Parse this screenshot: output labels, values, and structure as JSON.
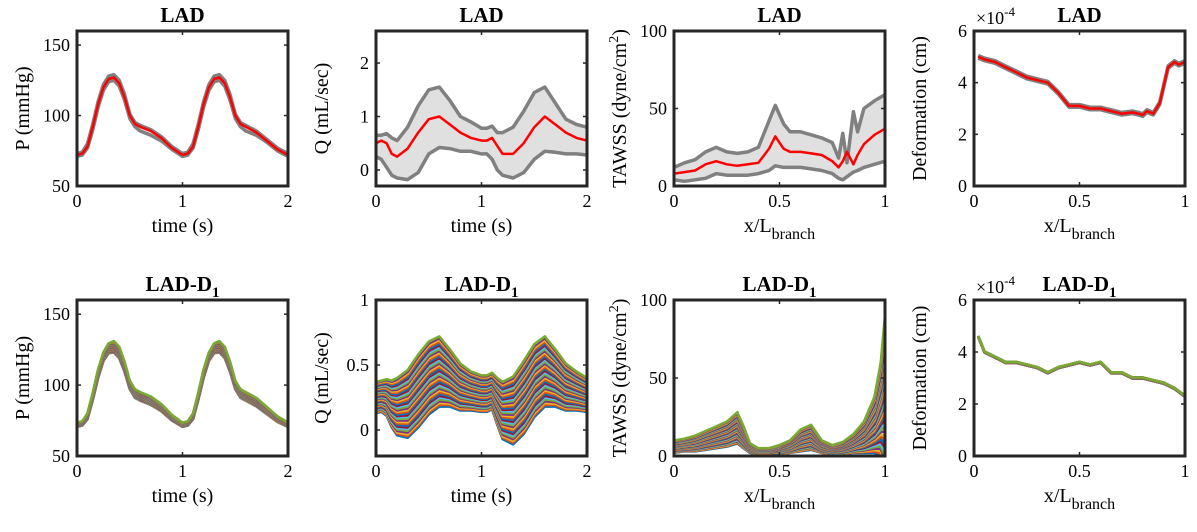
{
  "chart_data": [
    {
      "type": "line",
      "title": "LAD",
      "xlabel": "time (s)",
      "ylabel": "P (mmHg)",
      "xlim": [
        0,
        2
      ],
      "ylim": [
        50,
        160
      ],
      "xticks": [
        "0",
        "1",
        "2"
      ],
      "yticks": [
        "50",
        "100",
        "150"
      ],
      "colors": {
        "mean": "#ff0000",
        "bound": "#808080",
        "band": "#e0e0e0"
      },
      "series": [
        {
          "x": [
            0,
            0.05,
            0.1,
            0.15,
            0.2,
            0.25,
            0.3,
            0.35,
            0.4,
            0.45,
            0.5,
            0.55,
            0.6,
            0.7,
            0.8,
            0.9,
            1.0,
            1.05,
            1.1,
            1.15,
            1.2,
            1.25,
            1.3,
            1.35,
            1.4,
            1.45,
            1.5,
            1.55,
            1.6,
            1.7,
            1.8,
            1.9,
            2.0
          ],
          "mean": [
            72,
            73,
            78,
            92,
            108,
            120,
            126,
            127,
            123,
            113,
            100,
            94,
            92,
            89,
            84,
            77,
            72,
            73,
            78,
            92,
            108,
            120,
            126,
            127,
            123,
            113,
            100,
            94,
            92,
            88,
            82,
            76,
            72
          ],
          "upper": [
            73,
            74,
            80,
            94,
            110,
            122,
            128,
            129,
            125,
            115,
            101,
            95,
            93,
            90,
            85,
            78,
            73,
            74,
            80,
            94,
            110,
            122,
            128,
            129,
            125,
            115,
            101,
            95,
            93,
            89,
            83,
            77,
            73
          ],
          "lower": [
            71,
            72,
            77,
            90,
            106,
            118,
            124,
            125,
            121,
            111,
            98,
            92,
            89,
            86,
            82,
            76,
            71,
            72,
            77,
            90,
            106,
            118,
            124,
            125,
            121,
            111,
            98,
            92,
            89,
            86,
            81,
            75,
            71
          ]
        }
      ]
    },
    {
      "type": "line",
      "title": "LAD",
      "xlabel": "time (s)",
      "ylabel": "Q (mL/sec)",
      "xlim": [
        0,
        2
      ],
      "ylim": [
        -0.3,
        2.6
      ],
      "xticks": [
        "0",
        "1",
        "2"
      ],
      "yticks": [
        "0",
        "1",
        "2"
      ],
      "colors": {
        "mean": "#ff0000",
        "bound": "#808080",
        "band": "#e0e0e0"
      },
      "series": [
        {
          "x": [
            0,
            0.05,
            0.1,
            0.15,
            0.2,
            0.3,
            0.4,
            0.5,
            0.6,
            0.7,
            0.8,
            0.9,
            1.0,
            1.05,
            1.1,
            1.15,
            1.2,
            1.3,
            1.4,
            1.5,
            1.6,
            1.7,
            1.8,
            1.9,
            2.0
          ],
          "mean": [
            0.5,
            0.55,
            0.5,
            0.3,
            0.25,
            0.4,
            0.7,
            0.95,
            1.0,
            0.85,
            0.7,
            0.6,
            0.55,
            0.55,
            0.6,
            0.45,
            0.3,
            0.3,
            0.5,
            0.8,
            1.0,
            0.85,
            0.7,
            0.6,
            0.55
          ],
          "upper": [
            0.65,
            0.65,
            0.68,
            0.6,
            0.55,
            0.8,
            1.2,
            1.5,
            1.55,
            1.3,
            1.0,
            0.9,
            0.78,
            0.78,
            0.82,
            0.7,
            0.7,
            0.8,
            1.1,
            1.45,
            1.55,
            1.25,
            0.95,
            0.85,
            0.8
          ],
          "lower": [
            0.25,
            0.2,
            0.05,
            -0.1,
            -0.15,
            -0.18,
            -0.05,
            0.3,
            0.42,
            0.4,
            0.35,
            0.35,
            0.3,
            0.3,
            0.2,
            0.0,
            -0.1,
            -0.15,
            -0.05,
            0.2,
            0.35,
            0.33,
            0.3,
            0.3,
            0.28
          ]
        }
      ]
    },
    {
      "type": "line",
      "title": "LAD",
      "xlabel": "x/L",
      "xlabel_sub": "branch",
      "ylabel": "TAWSS (dyne/cm",
      "ylabel_sup": "2",
      "ylabel_end": ")",
      "xlim": [
        0,
        1
      ],
      "ylim": [
        0,
        100
      ],
      "xticks": [
        "0",
        "0.5",
        "1"
      ],
      "yticks": [
        "0",
        "50",
        "100"
      ],
      "colors": {
        "mean": "#ff0000",
        "bound": "#808080",
        "band": "#e0e0e0"
      },
      "series": [
        {
          "x": [
            0,
            0.05,
            0.1,
            0.15,
            0.2,
            0.25,
            0.3,
            0.35,
            0.4,
            0.45,
            0.48,
            0.52,
            0.55,
            0.6,
            0.65,
            0.7,
            0.75,
            0.78,
            0.8,
            0.82,
            0.85,
            0.87,
            0.9,
            0.95,
            1.0
          ],
          "mean": [
            8,
            9,
            10,
            14,
            16,
            14,
            13,
            14,
            15,
            24,
            32,
            24,
            22,
            22,
            21,
            20,
            16,
            12,
            16,
            22,
            14,
            20,
            27,
            33,
            37
          ],
          "upper": [
            12,
            15,
            17,
            22,
            25,
            22,
            21,
            22,
            25,
            42,
            52,
            40,
            35,
            35,
            33,
            31,
            28,
            18,
            34,
            15,
            48,
            35,
            50,
            55,
            59
          ],
          "lower": [
            4,
            3,
            4,
            5,
            8,
            7,
            7,
            7,
            8,
            10,
            13,
            12,
            12,
            12,
            11,
            10,
            8,
            5,
            4,
            6,
            9,
            10,
            12,
            14,
            16
          ]
        }
      ]
    },
    {
      "type": "line",
      "title": "LAD",
      "xlabel": "x/L",
      "xlabel_sub": "branch",
      "ylabel": "Deformation (cm)",
      "scale_note": "×10",
      "scale_exp": "-4",
      "xlim": [
        0,
        1
      ],
      "ylim": [
        0,
        6
      ],
      "xticks": [
        "0",
        "0.5",
        "1"
      ],
      "yticks": [
        "0",
        "2",
        "4",
        "6"
      ],
      "colors": {
        "mean": "#ff0000",
        "bound": "#808080",
        "band": "#e0e0e0"
      },
      "series": [
        {
          "x": [
            0.02,
            0.05,
            0.1,
            0.15,
            0.2,
            0.25,
            0.3,
            0.35,
            0.4,
            0.45,
            0.5,
            0.55,
            0.6,
            0.65,
            0.7,
            0.75,
            0.78,
            0.8,
            0.82,
            0.85,
            0.88,
            0.9,
            0.92,
            0.95,
            0.97,
            1.0
          ],
          "mean": [
            5.0,
            4.9,
            4.8,
            4.6,
            4.4,
            4.2,
            4.1,
            4.0,
            3.6,
            3.1,
            3.1,
            3.0,
            3.0,
            2.9,
            2.8,
            2.85,
            2.8,
            2.75,
            2.9,
            2.8,
            3.2,
            3.9,
            4.6,
            4.8,
            4.7,
            4.8
          ],
          "upper": [
            5.05,
            4.95,
            4.85,
            4.65,
            4.45,
            4.25,
            4.15,
            4.05,
            3.65,
            3.15,
            3.15,
            3.05,
            3.05,
            2.95,
            2.85,
            2.9,
            2.85,
            2.8,
            2.95,
            2.85,
            3.25,
            3.95,
            4.65,
            4.85,
            4.75,
            4.85
          ],
          "lower": [
            4.95,
            4.85,
            4.75,
            4.55,
            4.35,
            4.15,
            4.05,
            3.95,
            3.55,
            3.05,
            3.05,
            2.95,
            2.95,
            2.85,
            2.75,
            2.8,
            2.75,
            2.7,
            2.85,
            2.75,
            3.15,
            3.85,
            4.55,
            4.75,
            4.65,
            4.75
          ]
        }
      ]
    },
    {
      "type": "line",
      "title": "LAD-D",
      "title_sub": "1",
      "xlabel": "time (s)",
      "ylabel": "P (mmHg)",
      "xlim": [
        0,
        2
      ],
      "ylim": [
        50,
        160
      ],
      "xticks": [
        "0",
        "1",
        "2"
      ],
      "yticks": [
        "50",
        "100",
        "150"
      ],
      "series_colors": [
        "#0072bd",
        "#d95319",
        "#edb120",
        "#7e2f8e",
        "#77ac30",
        "#4dbeee",
        "#a2142f"
      ],
      "series": [
        {
          "x": [
            0,
            0.05,
            0.1,
            0.15,
            0.2,
            0.25,
            0.3,
            0.35,
            0.4,
            0.45,
            0.5,
            0.55,
            0.6,
            0.7,
            0.8,
            0.9,
            1.0,
            1.05,
            1.1,
            1.15,
            1.2,
            1.25,
            1.3,
            1.35,
            1.4,
            1.45,
            1.5,
            1.55,
            1.6,
            1.7,
            1.8,
            1.9,
            2.0
          ],
          "values": [
            72,
            73,
            78,
            92,
            108,
            120,
            126,
            127,
            123,
            113,
            100,
            94,
            92,
            89,
            84,
            77,
            72,
            73,
            78,
            92,
            108,
            120,
            126,
            127,
            123,
            113,
            100,
            94,
            92,
            88,
            82,
            76,
            72
          ],
          "spread": [
            1.5,
            1.5,
            2,
            2.5,
            3,
            3,
            3.5,
            4,
            4,
            3.5,
            3,
            3,
            3,
            3,
            2.5,
            2,
            1.5,
            1.5,
            2,
            2.5,
            3,
            3,
            3.5,
            4,
            4,
            3.5,
            3,
            3,
            3,
            3,
            2.5,
            2,
            1.5
          ]
        }
      ]
    },
    {
      "type": "line",
      "title": "LAD-D",
      "title_sub": "1",
      "xlabel": "time (s)",
      "ylabel": "Q (mL/sec)",
      "xlim": [
        0,
        2
      ],
      "ylim": [
        -0.2,
        1.0
      ],
      "xticks": [
        "0",
        "1",
        "2"
      ],
      "yticks": [
        "0",
        "0.5",
        "1"
      ],
      "series_colors": [
        "#0072bd",
        "#d95319",
        "#edb120",
        "#7e2f8e",
        "#77ac30",
        "#4dbeee",
        "#a2142f"
      ],
      "series": [
        {
          "x": [
            0,
            0.05,
            0.1,
            0.15,
            0.2,
            0.3,
            0.4,
            0.5,
            0.6,
            0.7,
            0.8,
            0.9,
            1.0,
            1.05,
            1.1,
            1.15,
            1.2,
            1.3,
            1.4,
            1.5,
            1.6,
            1.7,
            1.8,
            1.9,
            2.0
          ],
          "values": [
            0.25,
            0.26,
            0.25,
            0.2,
            0.18,
            0.2,
            0.3,
            0.4,
            0.45,
            0.4,
            0.33,
            0.3,
            0.28,
            0.28,
            0.3,
            0.22,
            0.15,
            0.15,
            0.25,
            0.38,
            0.45,
            0.4,
            0.33,
            0.3,
            0.27
          ],
          "spread": [
            0.12,
            0.12,
            0.14,
            0.18,
            0.22,
            0.26,
            0.28,
            0.28,
            0.27,
            0.22,
            0.18,
            0.15,
            0.14,
            0.14,
            0.14,
            0.18,
            0.22,
            0.26,
            0.28,
            0.28,
            0.27,
            0.22,
            0.18,
            0.15,
            0.13
          ]
        }
      ]
    },
    {
      "type": "line",
      "title": "LAD-D",
      "title_sub": "1",
      "xlabel": "x/L",
      "xlabel_sub": "branch",
      "ylabel": "TAWSS (dyne/cm",
      "ylabel_sup": "2",
      "ylabel_end": ")",
      "xlim": [
        0,
        1
      ],
      "ylim": [
        0,
        100
      ],
      "xticks": [
        "0",
        "0.5",
        "1"
      ],
      "yticks": [
        "0",
        "50",
        "100"
      ],
      "series_colors": [
        "#0072bd",
        "#d95319",
        "#edb120",
        "#7e2f8e",
        "#77ac30",
        "#4dbeee",
        "#a2142f"
      ],
      "series": [
        {
          "x": [
            0,
            0.05,
            0.1,
            0.15,
            0.2,
            0.25,
            0.3,
            0.33,
            0.36,
            0.4,
            0.45,
            0.5,
            0.55,
            0.6,
            0.65,
            0.7,
            0.75,
            0.8,
            0.85,
            0.9,
            0.95,
            0.98,
            1.0
          ],
          "values": [
            6,
            7,
            8,
            10,
            12,
            14,
            18,
            12,
            5,
            3,
            3,
            4,
            6,
            10,
            12,
            6,
            4,
            5,
            8,
            12,
            20,
            30,
            40
          ],
          "spread": [
            4,
            4,
            5,
            6,
            7,
            8,
            10,
            7,
            3,
            2,
            2,
            3,
            4,
            7,
            8,
            4,
            3,
            4,
            6,
            10,
            18,
            30,
            50
          ]
        }
      ]
    },
    {
      "type": "line",
      "title": "LAD-D",
      "title_sub": "1",
      "xlabel": "x/L",
      "xlabel_sub": "branch",
      "ylabel": "Deformation (cm)",
      "scale_note": "×10",
      "scale_exp": "-4",
      "xlim": [
        0,
        1
      ],
      "ylim": [
        0,
        6
      ],
      "xticks": [
        "0",
        "0.5",
        "1"
      ],
      "yticks": [
        "0",
        "2",
        "4",
        "6"
      ],
      "series_colors": [
        "#0072bd",
        "#d95319",
        "#edb120",
        "#7e2f8e",
        "#77ac30",
        "#4dbeee",
        "#a2142f"
      ],
      "series": [
        {
          "x": [
            0.02,
            0.05,
            0.1,
            0.15,
            0.2,
            0.25,
            0.3,
            0.35,
            0.4,
            0.45,
            0.5,
            0.55,
            0.6,
            0.65,
            0.7,
            0.75,
            0.8,
            0.85,
            0.9,
            0.95,
            1.0
          ],
          "values": [
            4.6,
            4.0,
            3.8,
            3.6,
            3.6,
            3.5,
            3.4,
            3.2,
            3.4,
            3.5,
            3.6,
            3.5,
            3.6,
            3.2,
            3.2,
            3.0,
            3.0,
            2.9,
            2.8,
            2.6,
            2.3
          ],
          "spread": [
            0.02,
            0.02,
            0.02,
            0.02,
            0.02,
            0.02,
            0.02,
            0.02,
            0.02,
            0.02,
            0.02,
            0.02,
            0.02,
            0.02,
            0.02,
            0.02,
            0.02,
            0.02,
            0.02,
            0.02,
            0.02
          ]
        }
      ]
    }
  ]
}
